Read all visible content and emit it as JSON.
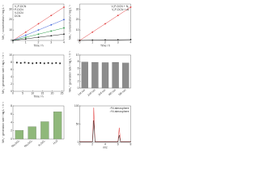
{
  "chart_data": [
    {
      "type": "line",
      "xlabel": "Time / h",
      "ylabel": "NH₄⁺ concentration / mg L⁻¹",
      "x": [
        0,
        1,
        2,
        3,
        4
      ],
      "xlim": [
        0,
        4
      ],
      "xticks": [
        0,
        1,
        2,
        3,
        4
      ],
      "ylim": [
        0,
        35
      ],
      "yticks": [
        0,
        10,
        20,
        30
      ],
      "markers": true,
      "legend": "upper left",
      "series": [
        {
          "name": "V₂P-DCN",
          "color": "#e23b3b",
          "values": [
            0,
            8,
            16,
            24,
            32
          ]
        },
        {
          "name": "P-DCN",
          "color": "#3b5fd9",
          "values": [
            0,
            5,
            10,
            15,
            20
          ]
        },
        {
          "name": "V-DCN",
          "color": "#2e9e4a",
          "values": [
            0,
            3,
            6,
            9,
            12
          ]
        },
        {
          "name": "DCN",
          "color": "#222222",
          "values": [
            0,
            1.5,
            3,
            4.5,
            6
          ]
        }
      ]
    },
    {
      "type": "line",
      "xlabel": "Time / h",
      "ylabel": "NH₄⁺ concentration / mg L⁻¹",
      "x": [
        0,
        1,
        2,
        3,
        4
      ],
      "xlim": [
        0,
        4
      ],
      "xticks": [
        0,
        1,
        2,
        3,
        4
      ],
      "ylim": [
        0,
        35
      ],
      "yticks": [
        0,
        10,
        20,
        30
      ],
      "markers": true,
      "legend": "upper right",
      "series": [
        {
          "name": "V₂P-DCN + N₂",
          "color": "#e23b3b",
          "values": [
            0,
            8,
            16,
            24,
            32
          ]
        },
        {
          "name": "V₂P-DCN + Ar",
          "color": "#222222",
          "values": [
            0,
            0.3,
            0.5,
            0.6,
            0.8
          ]
        }
      ]
    },
    {
      "type": "scatter",
      "xlabel": "Time / h",
      "ylabel": "NH₄⁺ generation rate / mg L⁻¹ h⁻¹",
      "color": "#222222",
      "x": [
        2,
        4,
        6,
        8,
        10,
        12,
        14,
        16,
        18,
        20,
        22,
        24
      ],
      "values": [
        7.9,
        7.8,
        7.9,
        7.8,
        7.7,
        7.8,
        7.8,
        7.7,
        7.8,
        7.7,
        7.8,
        7.7
      ],
      "xlim": [
        0,
        26
      ],
      "xticks": [
        0,
        5,
        10,
        15,
        20,
        25
      ],
      "ylim": [
        0,
        10
      ],
      "yticks": [
        0,
        2,
        4,
        6,
        8,
        10
      ]
    },
    {
      "type": "bar",
      "ylabel": "NH₄⁺ generation rate / mg L⁻¹ h⁻¹",
      "color": "#8c8c8c",
      "categories": [
        "1st run",
        "2nd run",
        "3rd run",
        "4th run",
        "5th run"
      ],
      "values": [
        7.9,
        7.8,
        7.7,
        7.8,
        7.6
      ],
      "ylim": [
        0,
        10
      ],
      "yticks": [
        0,
        2,
        4,
        6,
        8,
        10
      ]
    },
    {
      "type": "bar",
      "ylabel": "NH₄⁺ generation rate / mg L⁻¹ h⁻¹",
      "color": "#8fb87a",
      "categories": [
        "Na₂SO₃",
        "Na₂SO₄",
        "K₂SO₄",
        "H₂O"
      ],
      "values": [
        2.1,
        3.0,
        4.2,
        6.6
      ],
      "ylim": [
        0,
        8
      ],
      "yticks": [
        0,
        2,
        4,
        6,
        8
      ]
    },
    {
      "type": "line",
      "xlabel": "m/z",
      "x": [
        0,
        2,
        2.2,
        2.4,
        4,
        6,
        6.2,
        6.4,
        8
      ],
      "xlim": [
        0,
        8
      ],
      "xticks": [
        0,
        2,
        4,
        6,
        8
      ],
      "ylim": [
        0,
        100
      ],
      "yticks": [
        0,
        50,
        100
      ],
      "markers": false,
      "legend": "upper right",
      "series": [
        {
          "name": "¹⁵N atmosphere",
          "color": "#e23b3b",
          "values": [
            2,
            2,
            95,
            2,
            2,
            2,
            40,
            2,
            2
          ]
        },
        {
          "name": "¹⁴N atmosphere",
          "color": "#222222",
          "values": [
            1,
            1,
            60,
            1,
            1,
            1,
            20,
            1,
            1
          ]
        }
      ]
    }
  ]
}
